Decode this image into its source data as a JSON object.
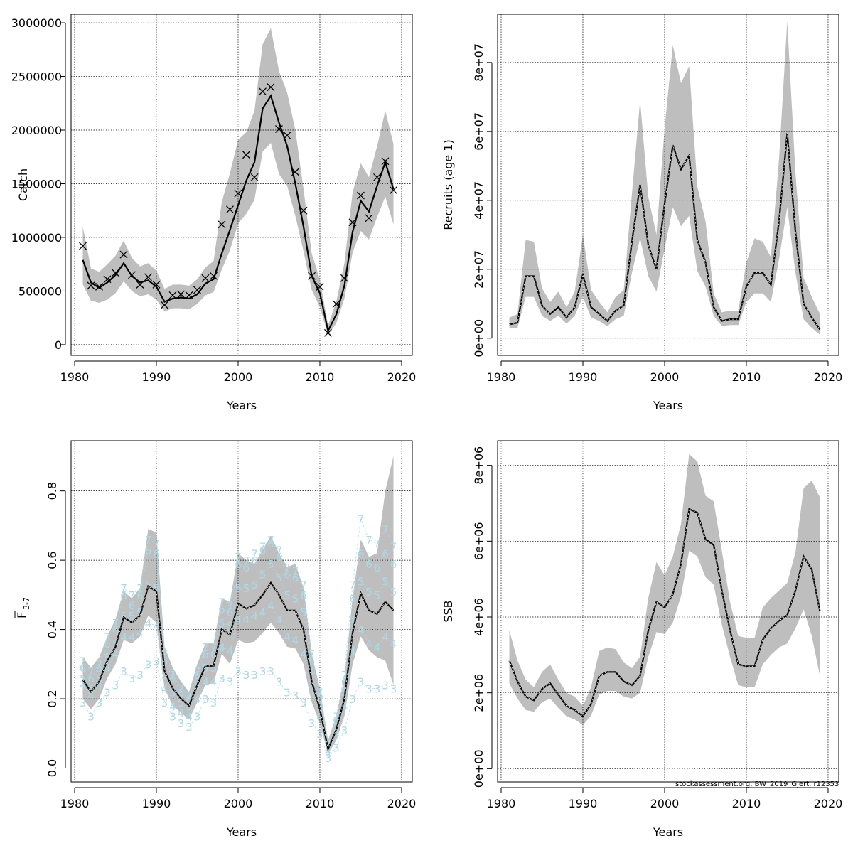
{
  "footer": "stockassessment.org, BW_2019_Gjert, r12353",
  "colors": {
    "band": "#bebebe",
    "line": "#000000",
    "grid": "#000000",
    "ages": "#add8e6"
  },
  "chart_data": [
    {
      "type": "line",
      "xlabel": "Years",
      "ylabel": "Catch",
      "xlim": [
        1980,
        2020
      ],
      "xticks": [
        1980,
        1990,
        2000,
        2010,
        2020
      ],
      "ylim": [
        -100000,
        3080000
      ],
      "yticks": [
        0,
        500000,
        1000000,
        1500000,
        2000000,
        2500000,
        3000000
      ],
      "ytick_labels": [
        "0",
        "500000",
        "1000000",
        "1500000",
        "2000000",
        "2500000",
        "3000000"
      ],
      "x": [
        1981,
        1982,
        1983,
        1984,
        1985,
        1986,
        1987,
        1988,
        1989,
        1990,
        1991,
        1992,
        1993,
        1994,
        1995,
        1996,
        1997,
        1998,
        1999,
        2000,
        2001,
        2002,
        2003,
        2004,
        2005,
        2006,
        2007,
        2008,
        2009,
        2010,
        2011,
        2012,
        2013,
        2014,
        2015,
        2016,
        2017,
        2018,
        2019
      ],
      "series": [
        {
          "role": "estimate",
          "values": [
            790000,
            580000,
            530000,
            580000,
            650000,
            760000,
            640000,
            580000,
            600000,
            540000,
            400000,
            430000,
            440000,
            430000,
            470000,
            570000,
            610000,
            850000,
            1070000,
            1300000,
            1530000,
            1700000,
            2200000,
            2320000,
            2070000,
            1850000,
            1500000,
            1100000,
            640000,
            480000,
            130000,
            280000,
            550000,
            1050000,
            1340000,
            1240000,
            1480000,
            1700000,
            1450000
          ]
        },
        {
          "role": "lower",
          "values": [
            560000,
            410000,
            390000,
            420000,
            480000,
            590000,
            500000,
            450000,
            470000,
            420000,
            310000,
            340000,
            340000,
            330000,
            380000,
            460000,
            490000,
            700000,
            880000,
            1130000,
            1220000,
            1350000,
            1800000,
            1880000,
            1590000,
            1480000,
            1200000,
            870000,
            510000,
            350000,
            90000,
            200000,
            430000,
            860000,
            1060000,
            980000,
            1190000,
            1380000,
            1120000
          ]
        },
        {
          "role": "upper",
          "values": [
            1100000,
            710000,
            680000,
            750000,
            830000,
            970000,
            810000,
            730000,
            760000,
            690000,
            520000,
            560000,
            560000,
            550000,
            610000,
            720000,
            780000,
            1330000,
            1600000,
            1910000,
            1980000,
            2180000,
            2800000,
            2950000,
            2550000,
            2350000,
            2000000,
            1450000,
            850000,
            610000,
            180000,
            400000,
            760000,
            1420000,
            1690000,
            1560000,
            1850000,
            2180000,
            1870000
          ]
        },
        {
          "role": "observed",
          "values": [
            920000,
            550000,
            540000,
            610000,
            670000,
            840000,
            650000,
            560000,
            630000,
            560000,
            370000,
            460000,
            470000,
            460000,
            510000,
            620000,
            640000,
            1120000,
            1260000,
            1410000,
            1770000,
            1560000,
            2360000,
            2400000,
            2010000,
            1950000,
            1610000,
            1250000,
            640000,
            540000,
            110000,
            380000,
            620000,
            1140000,
            1390000,
            1180000,
            1560000,
            1710000,
            1440000
          ]
        }
      ]
    },
    {
      "type": "line",
      "xlabel": "Years",
      "ylabel": "Recruits (age 1)",
      "xlim": [
        1980,
        2020
      ],
      "xticks": [
        1980,
        1990,
        2000,
        2010,
        2020
      ],
      "ylim": [
        -5000000,
        94000000
      ],
      "yticks": [
        0,
        20000000,
        40000000,
        60000000,
        80000000
      ],
      "ytick_labels": [
        "0e+00",
        "2e+07",
        "4e+07",
        "6e+07",
        "8e+07"
      ],
      "x": [
        1981,
        1982,
        1983,
        1984,
        1985,
        1986,
        1987,
        1988,
        1989,
        1990,
        1991,
        1992,
        1993,
        1994,
        1995,
        1996,
        1997,
        1998,
        1999,
        2000,
        2001,
        2002,
        2003,
        2004,
        2005,
        2006,
        2007,
        2008,
        2009,
        2010,
        2011,
        2012,
        2013,
        2014,
        2015,
        2016,
        2017,
        2018,
        2019
      ],
      "series": [
        {
          "role": "estimate",
          "values": [
            4000000,
            4500000,
            18000000,
            18000000,
            9500000,
            7000000,
            9000000,
            6000000,
            9000000,
            18500000,
            9000000,
            7000000,
            5000000,
            8000000,
            9500000,
            28000000,
            44500000,
            27000000,
            20000000,
            39000000,
            56000000,
            49000000,
            53000000,
            28500000,
            22000000,
            9000000,
            5000000,
            5500000,
            5500000,
            15000000,
            19000000,
            19000000,
            15500000,
            34000000,
            59500000,
            31000000,
            10000000,
            6000000,
            2500000
          ]
        },
        {
          "role": "lower",
          "values": [
            2800000,
            3000000,
            12000000,
            12000000,
            6500000,
            5000000,
            6500000,
            4200000,
            6500000,
            12000000,
            6000000,
            5000000,
            3500000,
            5500000,
            6500000,
            19000000,
            29000000,
            18000000,
            13500000,
            26000000,
            38000000,
            32500000,
            35500000,
            19500000,
            15000000,
            6500000,
            3500000,
            3800000,
            3800000,
            10500000,
            13000000,
            13000000,
            10500000,
            23000000,
            38000000,
            19000000,
            5500000,
            3000000,
            1000000
          ]
        },
        {
          "role": "upper",
          "values": [
            6000000,
            7000000,
            28500000,
            28000000,
            14500000,
            10500000,
            13500000,
            9000000,
            13500000,
            30000000,
            14000000,
            10500000,
            7500000,
            12000000,
            14000000,
            42000000,
            69000000,
            41000000,
            30000000,
            61000000,
            85000000,
            74000000,
            79000000,
            44000000,
            34000000,
            13000000,
            7500000,
            8000000,
            8000000,
            22000000,
            29000000,
            28000000,
            23500000,
            52000000,
            92000000,
            48000000,
            17500000,
            12000000,
            7000000
          ]
        }
      ]
    },
    {
      "type": "line",
      "xlabel": "Years",
      "ylabel": "F",
      "ylabel_sub": "3-7",
      "xlim": [
        1980,
        2020
      ],
      "xticks": [
        1980,
        1990,
        2000,
        2010,
        2020
      ],
      "ylim": [
        -0.04,
        0.945
      ],
      "yticks": [
        0,
        0.2,
        0.4,
        0.6,
        0.8
      ],
      "ytick_labels": [
        "0.0",
        "0.2",
        "0.4",
        "0.6",
        "0.8"
      ],
      "x": [
        1981,
        1982,
        1983,
        1984,
        1985,
        1986,
        1987,
        1988,
        1989,
        1990,
        1991,
        1992,
        1993,
        1994,
        1995,
        1996,
        1997,
        1998,
        1999,
        2000,
        2001,
        2002,
        2003,
        2004,
        2005,
        2006,
        2007,
        2008,
        2009,
        2010,
        2011,
        2012,
        2013,
        2014,
        2015,
        2016,
        2017,
        2018,
        2019
      ],
      "series": [
        {
          "role": "estimate",
          "values": [
            0.255,
            0.22,
            0.25,
            0.31,
            0.35,
            0.435,
            0.42,
            0.44,
            0.525,
            0.51,
            0.28,
            0.23,
            0.2,
            0.18,
            0.24,
            0.295,
            0.295,
            0.4,
            0.385,
            0.475,
            0.46,
            0.47,
            0.5,
            0.535,
            0.5,
            0.455,
            0.455,
            0.4,
            0.25,
            0.17,
            0.055,
            0.11,
            0.2,
            0.39,
            0.505,
            0.455,
            0.445,
            0.48,
            0.455
          ]
        },
        {
          "role": "lower",
          "values": [
            0.2,
            0.17,
            0.2,
            0.26,
            0.3,
            0.37,
            0.36,
            0.38,
            0.44,
            0.42,
            0.23,
            0.18,
            0.16,
            0.14,
            0.19,
            0.24,
            0.245,
            0.33,
            0.3,
            0.37,
            0.36,
            0.365,
            0.39,
            0.42,
            0.39,
            0.35,
            0.345,
            0.3,
            0.19,
            0.13,
            0.04,
            0.08,
            0.15,
            0.3,
            0.38,
            0.34,
            0.32,
            0.31,
            0.24
          ]
        },
        {
          "role": "upper",
          "values": [
            0.32,
            0.29,
            0.32,
            0.38,
            0.43,
            0.51,
            0.49,
            0.52,
            0.69,
            0.68,
            0.35,
            0.29,
            0.25,
            0.22,
            0.3,
            0.36,
            0.36,
            0.49,
            0.48,
            0.62,
            0.6,
            0.59,
            0.63,
            0.67,
            0.62,
            0.58,
            0.59,
            0.52,
            0.33,
            0.23,
            0.08,
            0.15,
            0.26,
            0.49,
            0.66,
            0.61,
            0.62,
            0.8,
            0.9
          ]
        }
      ],
      "age_labels": {
        "ages": [
          "3",
          "4",
          "5",
          "6",
          "7"
        ],
        "values": {
          "3": [
            0.19,
            0.15,
            0.19,
            0.22,
            0.24,
            0.28,
            0.26,
            0.27,
            0.3,
            0.31,
            0.19,
            0.15,
            0.13,
            0.12,
            0.15,
            0.2,
            0.19,
            0.26,
            0.25,
            0.28,
            0.27,
            0.27,
            0.28,
            0.28,
            0.25,
            0.22,
            0.21,
            0.19,
            0.13,
            0.1,
            0.03,
            0.06,
            0.11,
            0.2,
            0.25,
            0.23,
            0.23,
            0.24,
            0.23
          ],
          "4": [
            0.24,
            0.21,
            0.24,
            0.29,
            0.33,
            0.38,
            0.38,
            0.39,
            0.42,
            0.41,
            0.23,
            0.18,
            0.16,
            0.15,
            0.2,
            0.25,
            0.25,
            0.35,
            0.34,
            0.43,
            0.43,
            0.44,
            0.45,
            0.47,
            0.43,
            0.38,
            0.37,
            0.33,
            0.22,
            0.15,
            0.05,
            0.1,
            0.18,
            0.34,
            0.4,
            0.36,
            0.35,
            0.38,
            0.36
          ],
          "5": [
            0.26,
            0.23,
            0.26,
            0.32,
            0.36,
            0.44,
            0.44,
            0.45,
            0.53,
            0.52,
            0.27,
            0.22,
            0.19,
            0.18,
            0.24,
            0.29,
            0.29,
            0.42,
            0.41,
            0.52,
            0.52,
            0.53,
            0.56,
            0.59,
            0.55,
            0.5,
            0.49,
            0.45,
            0.28,
            0.19,
            0.06,
            0.12,
            0.22,
            0.43,
            0.54,
            0.51,
            0.5,
            0.54,
            0.51
          ],
          "6": [
            0.29,
            0.26,
            0.29,
            0.36,
            0.4,
            0.5,
            0.47,
            0.5,
            0.63,
            0.62,
            0.31,
            0.26,
            0.22,
            0.2,
            0.27,
            0.33,
            0.33,
            0.46,
            0.45,
            0.59,
            0.58,
            0.6,
            0.63,
            0.65,
            0.61,
            0.56,
            0.55,
            0.5,
            0.31,
            0.21,
            0.07,
            0.14,
            0.25,
            0.49,
            0.62,
            0.59,
            0.58,
            0.62,
            0.59
          ],
          "7": [
            0.31,
            0.28,
            0.3,
            0.38,
            0.42,
            0.52,
            0.5,
            0.52,
            0.66,
            0.65,
            0.33,
            0.27,
            0.23,
            0.21,
            0.28,
            0.35,
            0.35,
            0.48,
            0.47,
            0.61,
            0.6,
            0.62,
            0.64,
            0.66,
            0.63,
            0.58,
            0.57,
            0.53,
            0.33,
            0.22,
            0.07,
            0.15,
            0.27,
            0.53,
            0.72,
            0.66,
            0.65,
            0.69,
            0.64
          ]
        }
      }
    },
    {
      "type": "line",
      "xlabel": "Years",
      "ylabel": "SSB",
      "xlim": [
        1980,
        2020
      ],
      "xticks": [
        1980,
        1990,
        2000,
        2010,
        2020
      ],
      "ylim": [
        -350000,
        8650000
      ],
      "yticks": [
        0,
        2000000,
        4000000,
        6000000,
        8000000
      ],
      "ytick_labels": [
        "0e+00",
        "2e+06",
        "4e+06",
        "6e+06",
        "8e+06"
      ],
      "x": [
        1981,
        1982,
        1983,
        1984,
        1985,
        1986,
        1987,
        1988,
        1989,
        1990,
        1991,
        1992,
        1993,
        1994,
        1995,
        1996,
        1997,
        1998,
        1999,
        2000,
        2001,
        2002,
        2003,
        2004,
        2005,
        2006,
        2007,
        2008,
        2009,
        2010,
        2011,
        2012,
        2013,
        2014,
        2015,
        2016,
        2017,
        2018,
        2019
      ],
      "series": [
        {
          "role": "estimate",
          "values": [
            2850000,
            2300000,
            1900000,
            1800000,
            2100000,
            2250000,
            1950000,
            1650000,
            1550000,
            1380000,
            1700000,
            2450000,
            2550000,
            2550000,
            2300000,
            2200000,
            2450000,
            3650000,
            4400000,
            4250000,
            4600000,
            5400000,
            6850000,
            6750000,
            6050000,
            5900000,
            4700000,
            3650000,
            2750000,
            2700000,
            2700000,
            3400000,
            3700000,
            3900000,
            4050000,
            4700000,
            5600000,
            5250000,
            4150000
          ]
        },
        {
          "role": "lower",
          "values": [
            2250000,
            1850000,
            1550000,
            1500000,
            1750000,
            1850000,
            1600000,
            1380000,
            1300000,
            1150000,
            1400000,
            1950000,
            2050000,
            2050000,
            1900000,
            1850000,
            2000000,
            2950000,
            3600000,
            3550000,
            3850000,
            4550000,
            5750000,
            5600000,
            5050000,
            4850000,
            3800000,
            2950000,
            2200000,
            2150000,
            2150000,
            2750000,
            3000000,
            3200000,
            3300000,
            3700000,
            4200000,
            3500000,
            2450000
          ]
        },
        {
          "role": "upper",
          "values": [
            3650000,
            2850000,
            2350000,
            2150000,
            2550000,
            2750000,
            2350000,
            2000000,
            1900000,
            1650000,
            2150000,
            3100000,
            3200000,
            3150000,
            2800000,
            2650000,
            2950000,
            4500000,
            5450000,
            5100000,
            5600000,
            6450000,
            8300000,
            8100000,
            7200000,
            7050000,
            5750000,
            4400000,
            3500000,
            3450000,
            3450000,
            4250000,
            4500000,
            4700000,
            4900000,
            5700000,
            7400000,
            7600000,
            7150000
          ]
        }
      ]
    }
  ]
}
